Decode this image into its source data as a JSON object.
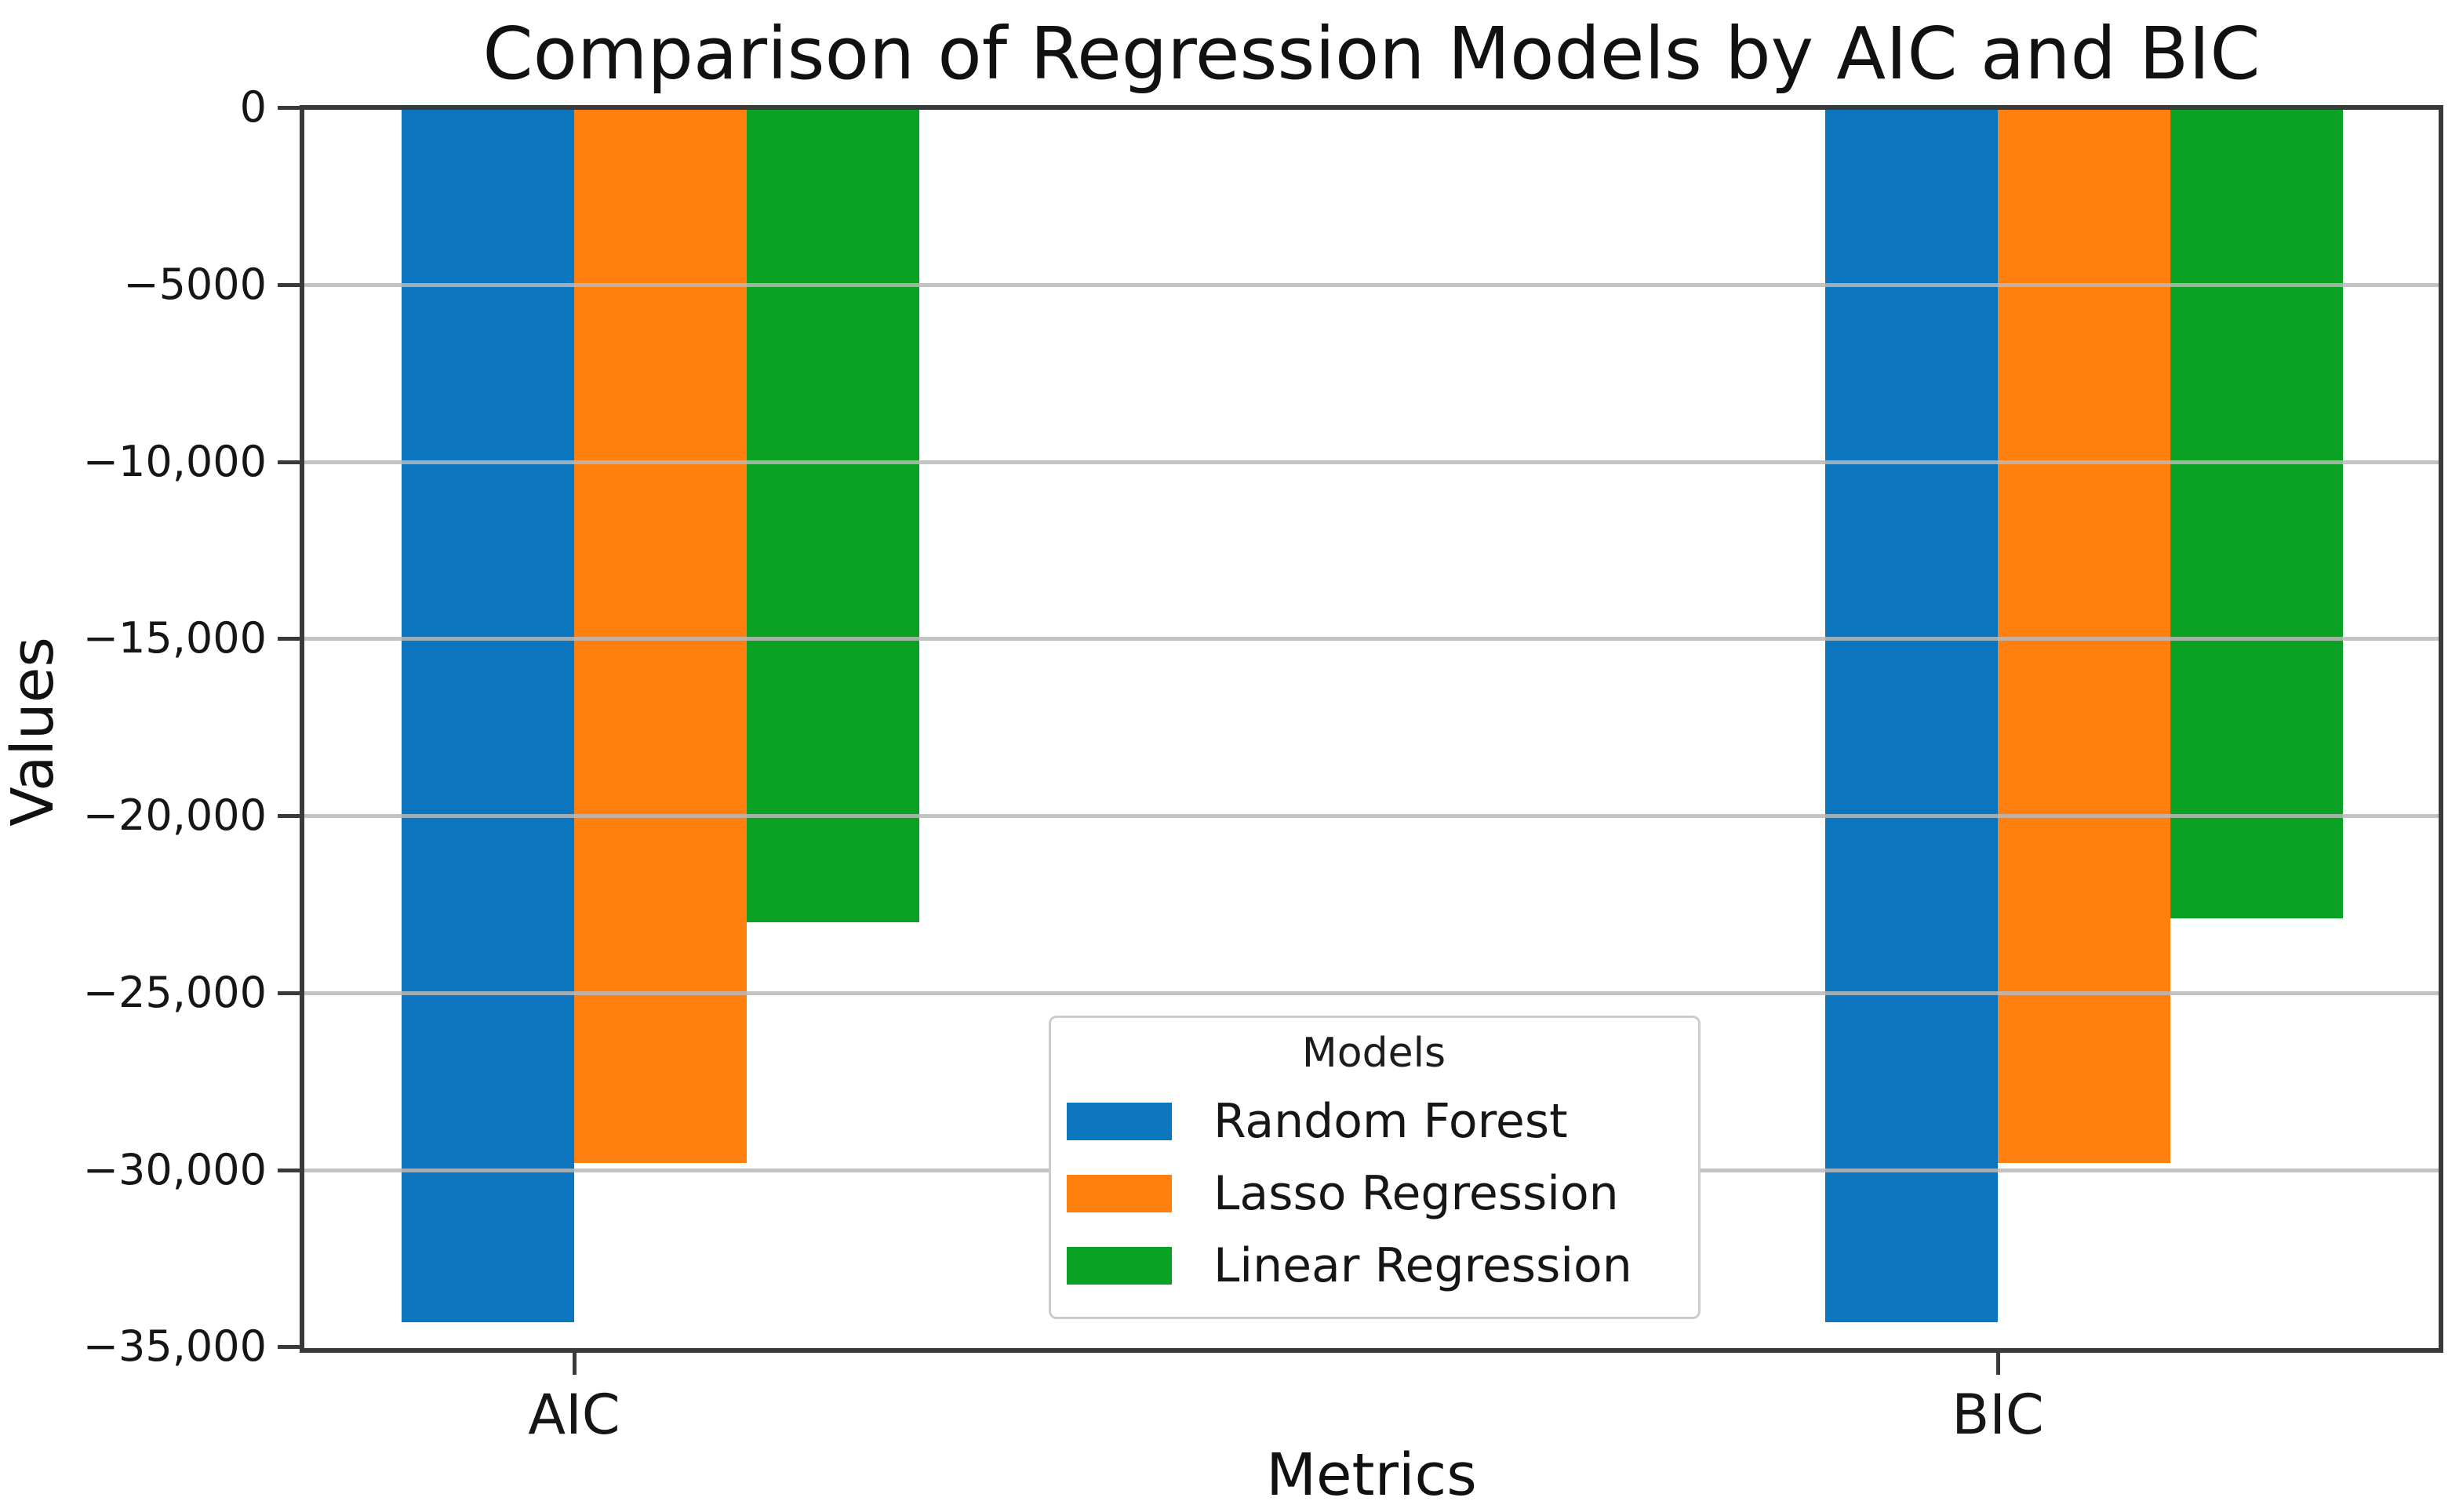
{
  "title": "Comparison of Regression Models by AIC and BIC",
  "chart_data": {
    "type": "bar",
    "orientation": "vertical",
    "categories": [
      "AIC",
      "BIC"
    ],
    "series": [
      {
        "name": "Random Forest",
        "color": "#0b76bd",
        "values": [
          -34300,
          -34300
        ]
      },
      {
        "name": "Lasso Regression",
        "color": "#ff800e",
        "values": [
          -29800,
          -29800
        ]
      },
      {
        "name": "Linear Regression",
        "color": "#0aa124",
        "values": [
          -23000,
          -22900
        ]
      }
    ],
    "xlabel": "Metrics",
    "ylabel": "Values",
    "ylim": [
      -35100,
      0
    ],
    "yticks": [
      {
        "value": 0,
        "label": "0"
      },
      {
        "value": -5000,
        "label": "−5000"
      },
      {
        "value": -10000,
        "label": "−10,000"
      },
      {
        "value": -15000,
        "label": "−15,000"
      },
      {
        "value": -20000,
        "label": "−20,000"
      },
      {
        "value": -25000,
        "label": "−25,000"
      },
      {
        "value": -30000,
        "label": "−30,000"
      },
      {
        "value": -35000,
        "label": "−35,000"
      }
    ],
    "grid": true,
    "grid_over_bars": true,
    "legend": {
      "title": "Models",
      "position": "lower center"
    },
    "colors": {
      "spine": "#3a3a3a",
      "gridline": "#b9b9b9",
      "background": "#ffffff",
      "text": "#161616"
    }
  }
}
